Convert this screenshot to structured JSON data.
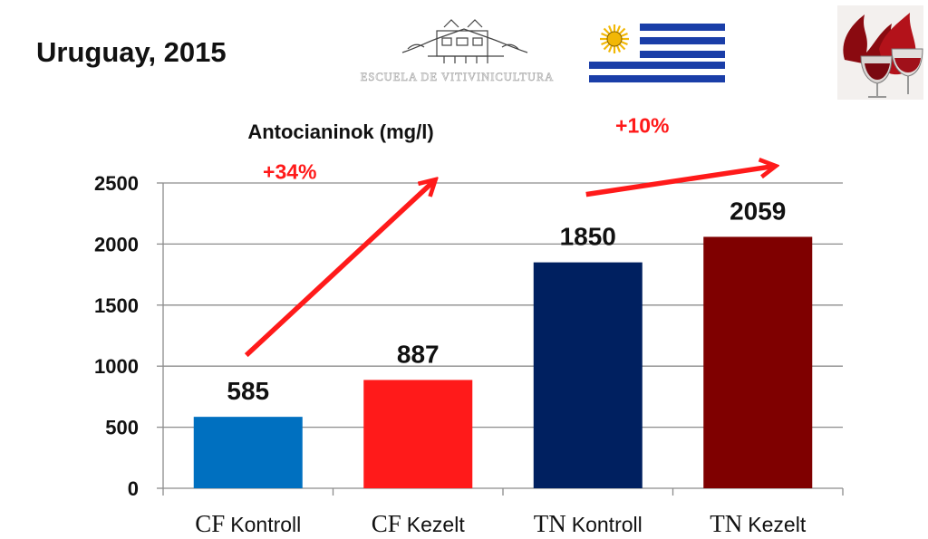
{
  "slide": {
    "title": "Uruguay, 2015",
    "logo_text": "ESCUELA DE VITIVINICULTURA"
  },
  "chart_data": {
    "type": "bar",
    "title": "Antocianinok (mg/l)",
    "categories": [
      {
        "main": "CF",
        "sub": "Kontroll"
      },
      {
        "main": "CF",
        "sub": "Kezelt"
      },
      {
        "main": "TN",
        "sub": "Kontroll"
      },
      {
        "main": "TN",
        "sub": "Kezelt"
      }
    ],
    "values": [
      585,
      887,
      1850,
      2059
    ],
    "bar_colors": [
      "#0070c0",
      "#ff1a1a",
      "#002060",
      "#7f0000"
    ],
    "ylim": [
      0,
      2500
    ],
    "y_ticks": [
      0,
      500,
      1000,
      1500,
      2000,
      2500
    ],
    "grid": true,
    "legend": "none",
    "annotations": [
      {
        "text": "+34%",
        "from": 0,
        "to": 1,
        "color": "#ff1a1a"
      },
      {
        "text": "+10%",
        "from": 2,
        "to": 3,
        "color": "#ff1a1a"
      }
    ]
  }
}
